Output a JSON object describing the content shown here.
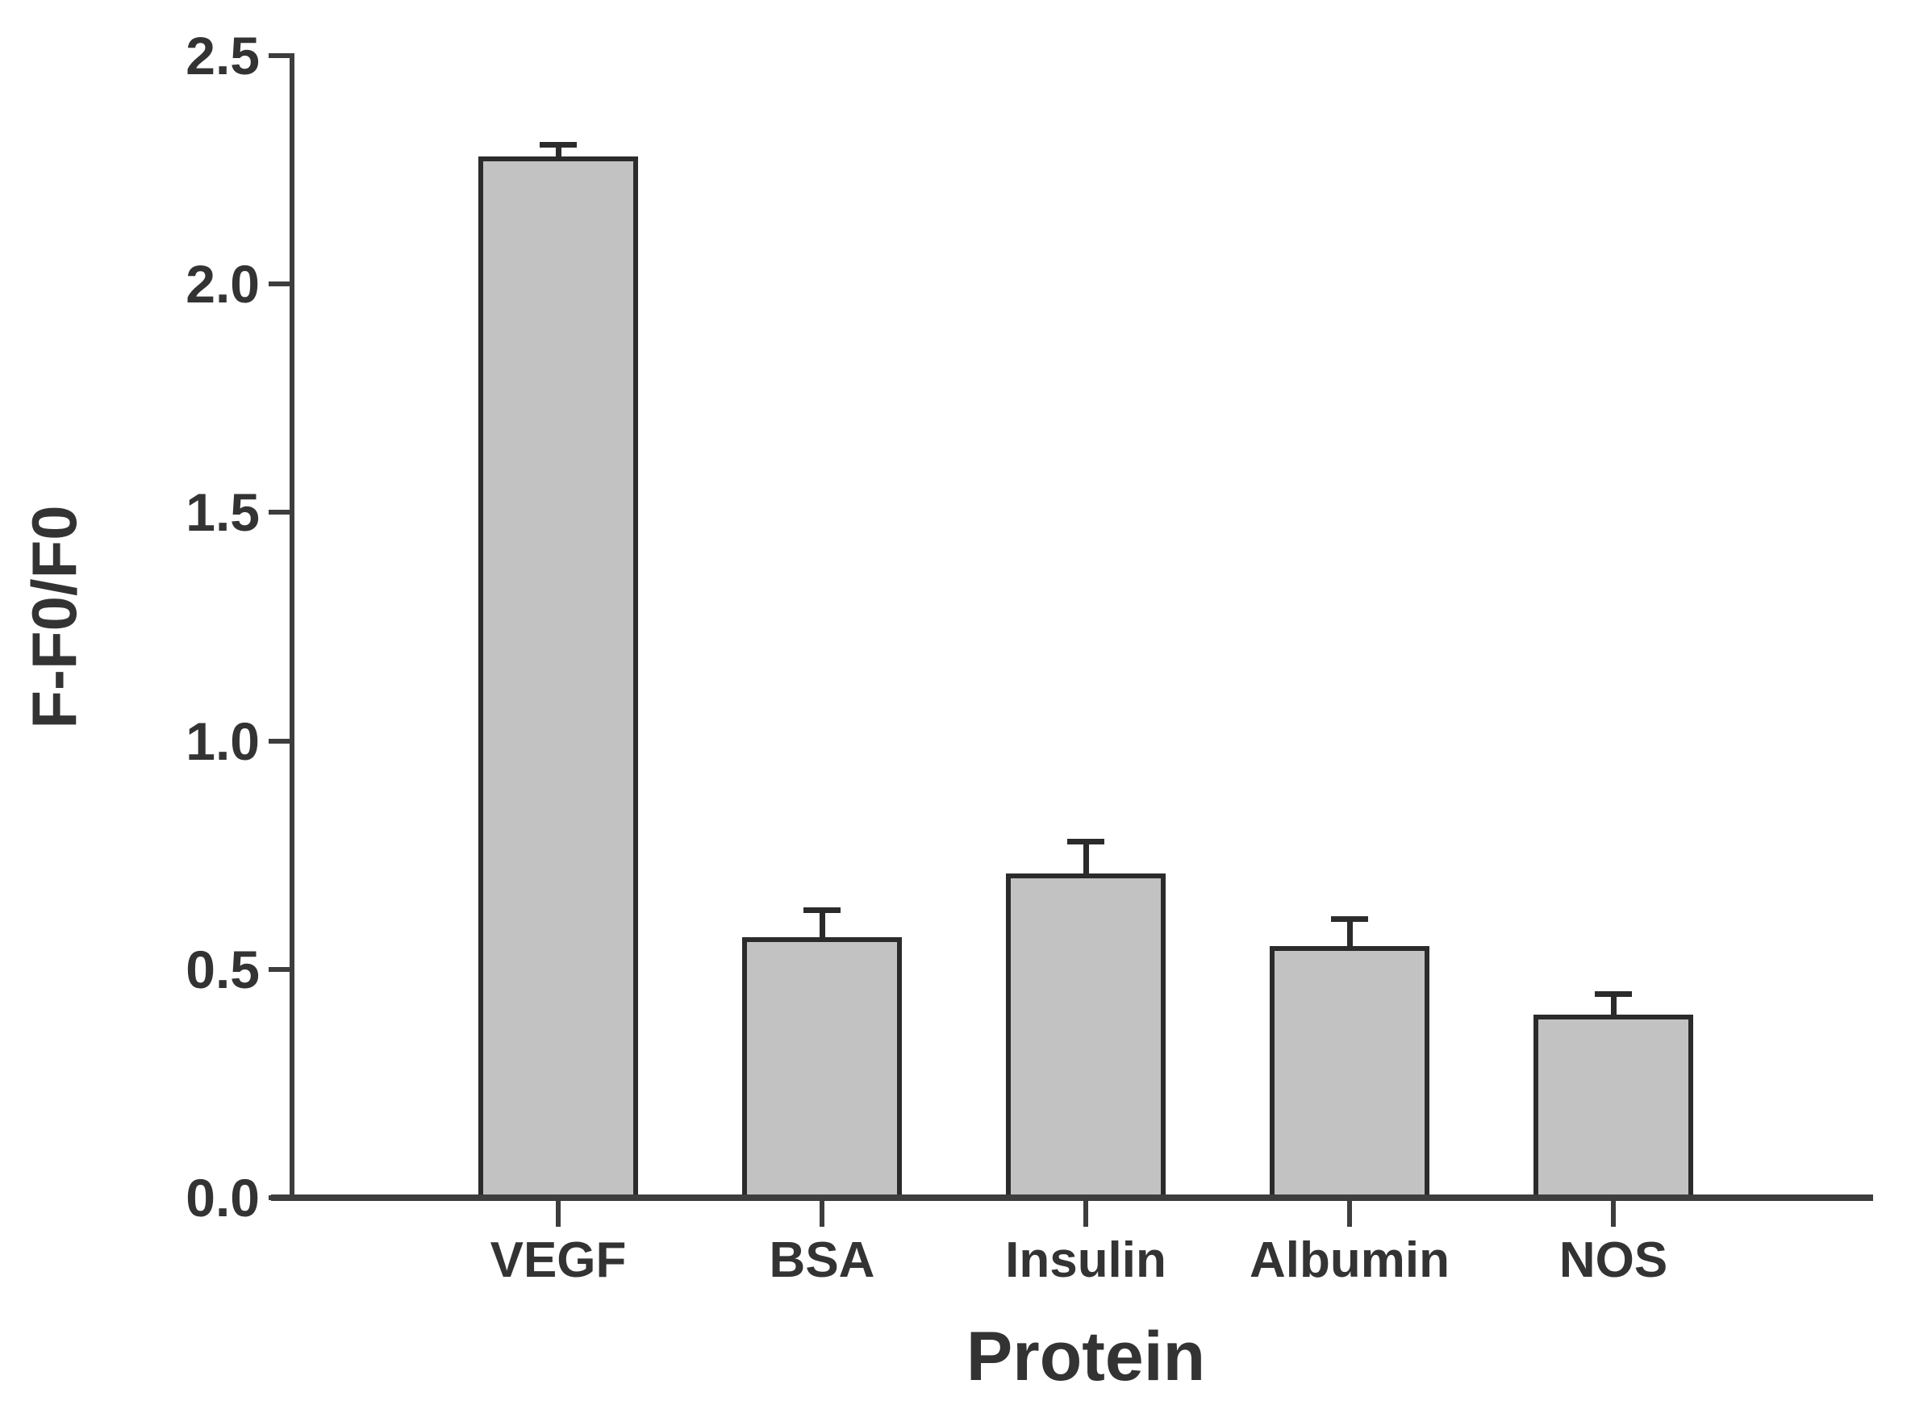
{
  "chart_data": {
    "type": "bar",
    "title": "",
    "xlabel": "Protein",
    "ylabel": "F-F0/F0",
    "categories": [
      "VEGF",
      "BSA",
      "Insulin",
      "Albumin",
      "NOS"
    ],
    "values": [
      2.28,
      0.57,
      0.71,
      0.55,
      0.4
    ],
    "errors_plus": [
      0.025,
      0.06,
      0.07,
      0.06,
      0.045
    ],
    "ylim": [
      0,
      2.5
    ],
    "yticks": [
      0,
      0.5,
      1,
      1.5,
      2,
      2.5
    ],
    "ytick_labels": [
      "0.0",
      "0.5",
      "1.0",
      "1.5",
      "2.0",
      "2.5"
    ],
    "grid": false,
    "legend": false,
    "bar_fill": "#c2c2c2",
    "bar_border": "#2b2b2b",
    "axis_color": "#3d3d3d",
    "text_color": "#333333",
    "background": "#ffffff"
  }
}
